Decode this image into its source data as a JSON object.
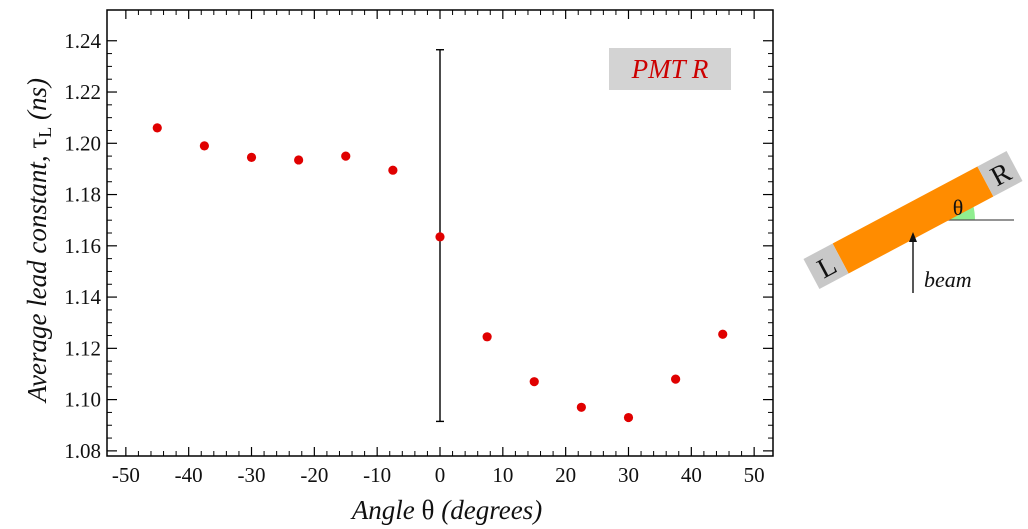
{
  "colors": {
    "points": "#e00000",
    "label_text": "#cc0000",
    "label_box": "#d3d3d3",
    "bar": "#ff8c00",
    "end_caps": "#c8c8c8",
    "angle_fill": "#90ee90"
  },
  "chart_data": {
    "type": "scatter",
    "xlabel_prefix": "Angle ",
    "xlabel_symbol": "θ",
    "xlabel_suffix": " (degrees)",
    "ylabel_main": "Average lead constant, ",
    "ylabel_symbol": "τ",
    "ylabel_sub": "L",
    "ylabel_suffix": " (ns)",
    "xlim": [
      -53,
      53
    ],
    "ylim": [
      1.078,
      1.252
    ],
    "xticks": [
      -50,
      -40,
      -30,
      -20,
      -10,
      0,
      10,
      20,
      30,
      40,
      50
    ],
    "xtick_labels": [
      "-50",
      "-40",
      "-30",
      "-20",
      "-10",
      "0",
      "10",
      "20",
      "30",
      "40",
      "50"
    ],
    "yticks": [
      1.08,
      1.1,
      1.12,
      1.14,
      1.16,
      1.18,
      1.2,
      1.22,
      1.24
    ],
    "ytick_labels": [
      "1.08",
      "1.10",
      "1.12",
      "1.14",
      "1.16",
      "1.18",
      "1.20",
      "1.22",
      "1.24"
    ],
    "annotation": "PMT  R",
    "x": [
      -45,
      -37.5,
      -30,
      -22.5,
      -15,
      -7.5,
      0,
      7.5,
      15,
      22.5,
      30,
      37.5,
      45
    ],
    "y": [
      1.206,
      1.199,
      1.1945,
      1.1935,
      1.195,
      1.1895,
      1.1635,
      1.1245,
      1.107,
      1.097,
      1.093,
      1.108,
      1.1255
    ],
    "error_bar": {
      "x": 0,
      "y_low": 1.0915,
      "y_high": 1.2365
    },
    "grid": false,
    "legend": "none"
  },
  "diagram": {
    "left_label": "L",
    "right_label": "R",
    "angle_label": "θ",
    "beam_label": "beam"
  }
}
